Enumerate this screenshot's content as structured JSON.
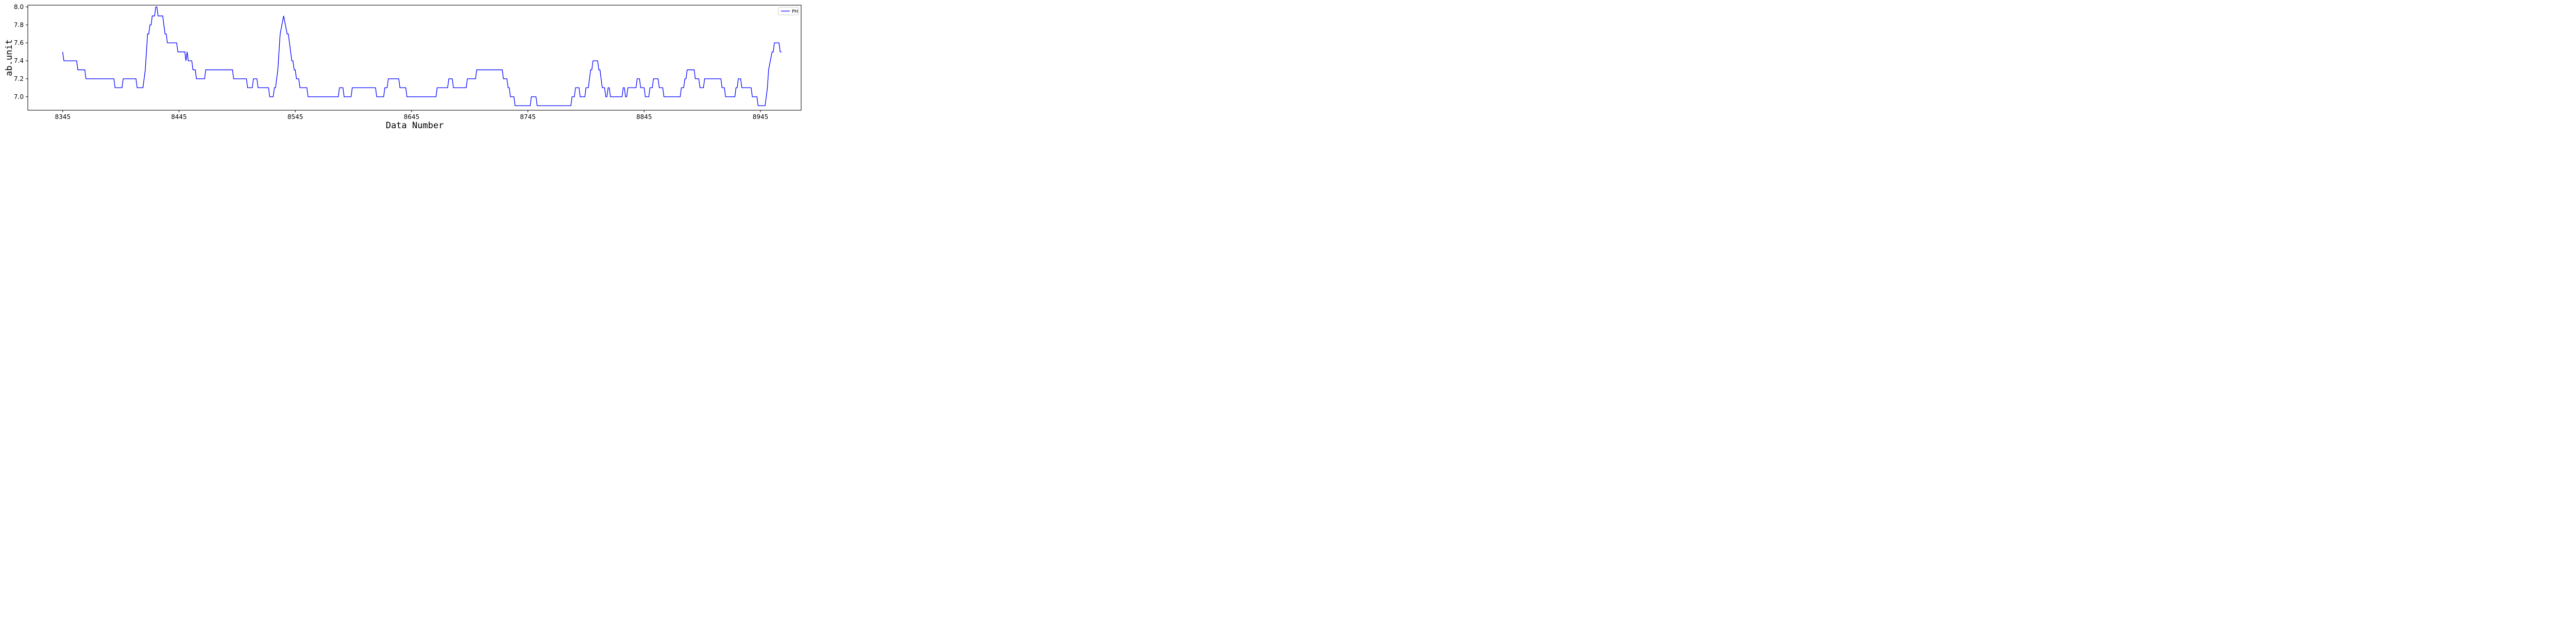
{
  "chart_data": {
    "type": "line",
    "title": "",
    "xlabel": "Data Number",
    "ylabel": "ab.unit",
    "xlim": [
      8315,
      8980
    ],
    "ylim": [
      6.85,
      8.02
    ],
    "x_ticks": [
      8345,
      8445,
      8545,
      8645,
      8745,
      8845,
      8945
    ],
    "y_ticks": [
      7.0,
      7.2,
      7.4,
      7.6,
      7.8,
      8.0
    ],
    "y_tick_labels": [
      "7.0",
      "7.2",
      "7.4",
      "7.6",
      "7.8",
      "8.0"
    ],
    "grid": false,
    "legend": {
      "placement": "top-right",
      "entries": [
        "PH"
      ]
    },
    "series": [
      {
        "name": "PH",
        "color": "#0000ff",
        "points": [
          [
            8345,
            7.5
          ],
          [
            8346,
            7.4
          ],
          [
            8357,
            7.4
          ],
          [
            8358,
            7.3
          ],
          [
            8364,
            7.3
          ],
          [
            8365,
            7.2
          ],
          [
            8389,
            7.2
          ],
          [
            8390,
            7.1
          ],
          [
            8396,
            7.1
          ],
          [
            8397,
            7.2
          ],
          [
            8408,
            7.2
          ],
          [
            8409,
            7.1
          ],
          [
            8414,
            7.1
          ],
          [
            8416,
            7.3
          ],
          [
            8417,
            7.5
          ],
          [
            8418,
            7.7
          ],
          [
            8419,
            7.7
          ],
          [
            8420,
            7.8
          ],
          [
            8421,
            7.8
          ],
          [
            8422,
            7.9
          ],
          [
            8424,
            7.9
          ],
          [
            8425,
            8.0
          ],
          [
            8426,
            8.0
          ],
          [
            8427,
            7.9
          ],
          [
            8431,
            7.9
          ],
          [
            8432,
            7.8
          ],
          [
            8433,
            7.7
          ],
          [
            8434,
            7.7
          ],
          [
            8435,
            7.6
          ],
          [
            8443,
            7.6
          ],
          [
            8444,
            7.5
          ],
          [
            8450,
            7.5
          ],
          [
            8451,
            7.4
          ],
          [
            8452,
            7.5
          ],
          [
            8453,
            7.4
          ],
          [
            8456,
            7.4
          ],
          [
            8457,
            7.3
          ],
          [
            8459,
            7.3
          ],
          [
            8460,
            7.2
          ],
          [
            8467,
            7.2
          ],
          [
            8468,
            7.3
          ],
          [
            8491,
            7.3
          ],
          [
            8492,
            7.2
          ],
          [
            8503,
            7.2
          ],
          [
            8504,
            7.1
          ],
          [
            8508,
            7.1
          ],
          [
            8509,
            7.2
          ],
          [
            8512,
            7.2
          ],
          [
            8513,
            7.1
          ],
          [
            8522,
            7.1
          ],
          [
            8523,
            7.0
          ],
          [
            8526,
            7.0
          ],
          [
            8527,
            7.1
          ],
          [
            8528,
            7.1
          ],
          [
            8530,
            7.3
          ],
          [
            8532,
            7.7
          ],
          [
            8535,
            7.9
          ],
          [
            8538,
            7.7
          ],
          [
            8539,
            7.7
          ],
          [
            8542,
            7.4
          ],
          [
            8543,
            7.4
          ],
          [
            8544,
            7.3
          ],
          [
            8545,
            7.3
          ],
          [
            8546,
            7.2
          ],
          [
            8548,
            7.2
          ],
          [
            8549,
            7.1
          ],
          [
            8555,
            7.1
          ],
          [
            8556,
            7.0
          ],
          [
            8582,
            7.0
          ],
          [
            8583,
            7.1
          ],
          [
            8586,
            7.1
          ],
          [
            8587,
            7.0
          ],
          [
            8593,
            7.0
          ],
          [
            8594,
            7.1
          ],
          [
            8614,
            7.1
          ],
          [
            8615,
            7.0
          ],
          [
            8621,
            7.0
          ],
          [
            8622,
            7.1
          ],
          [
            8624,
            7.1
          ],
          [
            8625,
            7.2
          ],
          [
            8634,
            7.2
          ],
          [
            8635,
            7.1
          ],
          [
            8640,
            7.1
          ],
          [
            8641,
            7.0
          ],
          [
            8666,
            7.0
          ],
          [
            8667,
            7.1
          ],
          [
            8676,
            7.1
          ],
          [
            8677,
            7.2
          ],
          [
            8680,
            7.2
          ],
          [
            8681,
            7.1
          ],
          [
            8692,
            7.1
          ],
          [
            8693,
            7.2
          ],
          [
            8700,
            7.2
          ],
          [
            8701,
            7.3
          ],
          [
            8723,
            7.3
          ],
          [
            8724,
            7.2
          ],
          [
            8727,
            7.2
          ],
          [
            8728,
            7.1
          ],
          [
            8729,
            7.1
          ],
          [
            8730,
            7.0
          ],
          [
            8733,
            7.0
          ],
          [
            8734,
            6.9
          ],
          [
            8747,
            6.9
          ],
          [
            8748,
            7.0
          ],
          [
            8752,
            7.0
          ],
          [
            8753,
            6.9
          ],
          [
            8782,
            6.9
          ],
          [
            8783,
            7.0
          ],
          [
            8785,
            7.0
          ],
          [
            8786,
            7.1
          ],
          [
            8789,
            7.1
          ],
          [
            8790,
            7.0
          ],
          [
            8794,
            7.0
          ],
          [
            8795,
            7.1
          ],
          [
            8797,
            7.1
          ],
          [
            8798,
            7.2
          ],
          [
            8799,
            7.3
          ],
          [
            8800,
            7.3
          ],
          [
            8801,
            7.4
          ],
          [
            8805,
            7.4
          ],
          [
            8806,
            7.3
          ],
          [
            8807,
            7.3
          ],
          [
            8809,
            7.1
          ],
          [
            8811,
            7.1
          ],
          [
            8812,
            7.0
          ],
          [
            8813,
            7.0
          ],
          [
            8814,
            7.1
          ],
          [
            8815,
            7.1
          ],
          [
            8816,
            7.0
          ],
          [
            8826,
            7.0
          ],
          [
            8827,
            7.1
          ],
          [
            8828,
            7.1
          ],
          [
            8829,
            7.0
          ],
          [
            8830,
            7.0
          ],
          [
            8831,
            7.1
          ],
          [
            8838,
            7.1
          ],
          [
            8839,
            7.2
          ],
          [
            8841,
            7.2
          ],
          [
            8842,
            7.1
          ],
          [
            8845,
            7.1
          ],
          [
            8846,
            7.0
          ],
          [
            8849,
            7.0
          ],
          [
            8850,
            7.1
          ],
          [
            8852,
            7.1
          ],
          [
            8853,
            7.2
          ],
          [
            8857,
            7.2
          ],
          [
            8858,
            7.1
          ],
          [
            8861,
            7.1
          ],
          [
            8862,
            7.0
          ],
          [
            8876,
            7.0
          ],
          [
            8877,
            7.1
          ],
          [
            8879,
            7.1
          ],
          [
            8880,
            7.2
          ],
          [
            8881,
            7.2
          ],
          [
            8882,
            7.3
          ],
          [
            8888,
            7.3
          ],
          [
            8889,
            7.2
          ],
          [
            8892,
            7.2
          ],
          [
            8893,
            7.1
          ],
          [
            8896,
            7.1
          ],
          [
            8897,
            7.2
          ],
          [
            8911,
            7.2
          ],
          [
            8912,
            7.1
          ],
          [
            8914,
            7.1
          ],
          [
            8915,
            7.0
          ],
          [
            8923,
            7.0
          ],
          [
            8924,
            7.1
          ],
          [
            8925,
            7.1
          ],
          [
            8926,
            7.2
          ],
          [
            8928,
            7.2
          ],
          [
            8929,
            7.1
          ],
          [
            8937,
            7.1
          ],
          [
            8938,
            7.0
          ],
          [
            8942,
            7.0
          ],
          [
            8943,
            6.9
          ],
          [
            8949,
            6.9
          ],
          [
            8951,
            7.1
          ],
          [
            8952,
            7.3
          ],
          [
            8955,
            7.5
          ],
          [
            8956,
            7.5
          ],
          [
            8957,
            7.6
          ],
          [
            8961,
            7.6
          ],
          [
            8962,
            7.5
          ],
          [
            8963,
            7.5
          ]
        ]
      }
    ]
  }
}
